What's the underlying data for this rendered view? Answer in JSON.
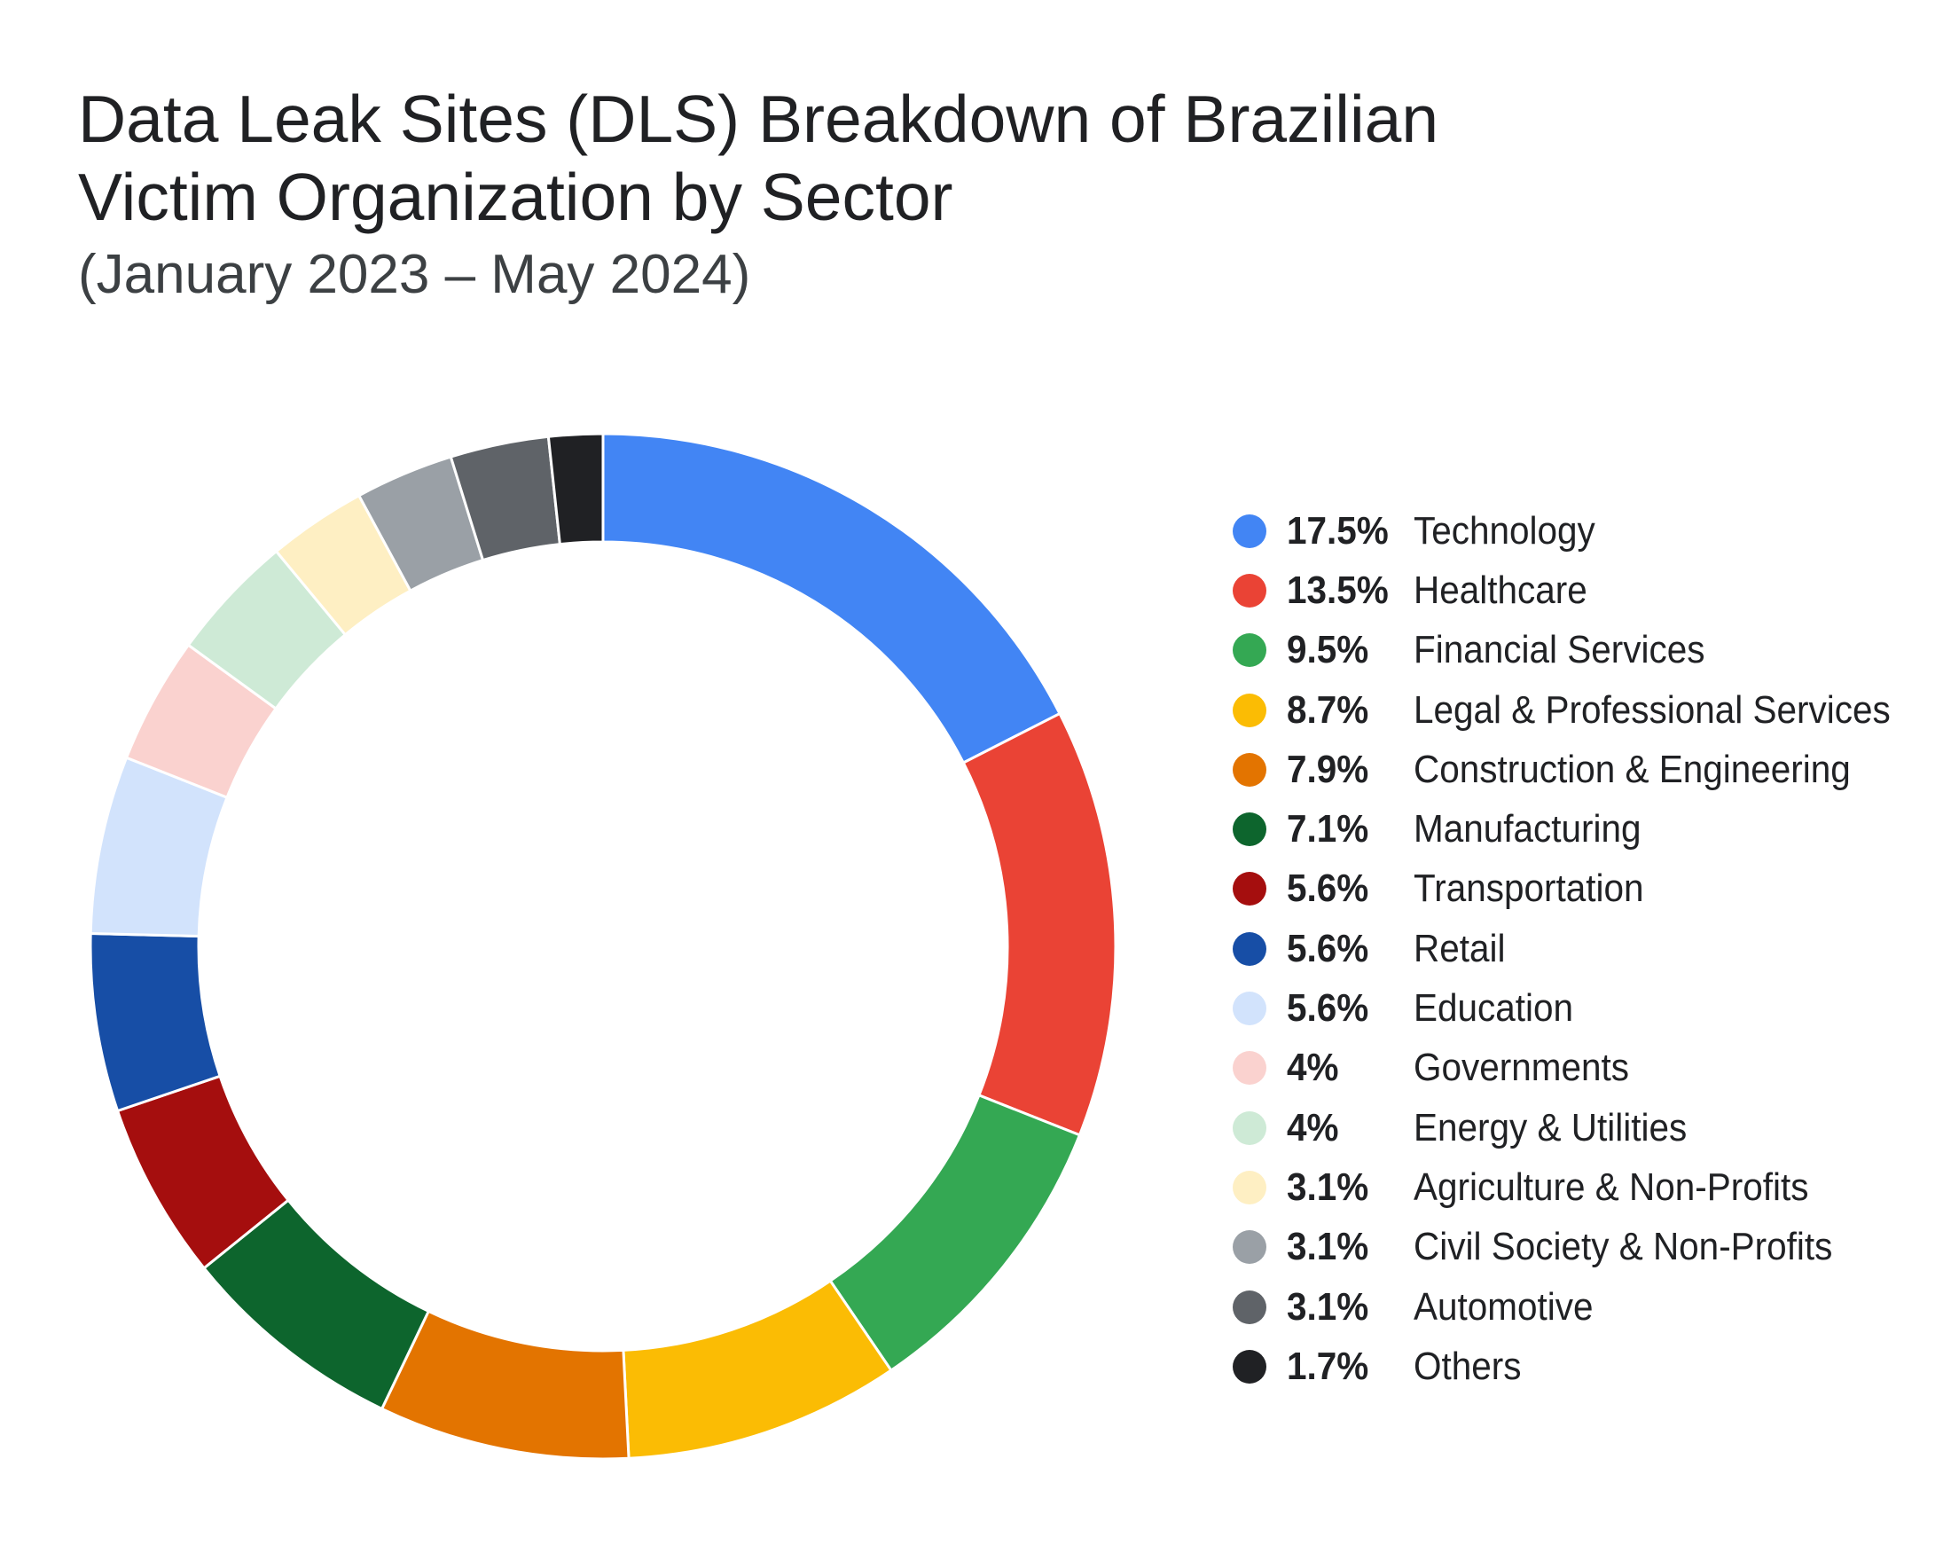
{
  "chart_data": {
    "type": "pie",
    "title": "Data Leak Sites (DLS) Breakdown of Brazilian Victim Organization by Sector",
    "subtitle": "(January 2023 – May 2024)",
    "legend_position": "right",
    "donut": true,
    "slices": [
      {
        "label": "Technology",
        "value": 17.5,
        "display": "17.5%",
        "color": "#4285F4"
      },
      {
        "label": "Healthcare",
        "value": 13.5,
        "display": "13.5%",
        "color": "#EA4335"
      },
      {
        "label": "Financial Services",
        "value": 9.5,
        "display": "9.5%",
        "color": "#34A853"
      },
      {
        "label": "Legal & Professional Services",
        "value": 8.7,
        "display": "8.7%",
        "color": "#FBBC04"
      },
      {
        "label": "Construction & Engineering",
        "value": 7.9,
        "display": "7.9%",
        "color": "#E37400"
      },
      {
        "label": "Manufacturing",
        "value": 7.1,
        "display": "7.1%",
        "color": "#0D652D"
      },
      {
        "label": "Transportation",
        "value": 5.6,
        "display": "5.6%",
        "color": "#A50E0E"
      },
      {
        "label": "Retail",
        "value": 5.6,
        "display": "5.6%",
        "color": "#174EA6"
      },
      {
        "label": "Education",
        "value": 5.6,
        "display": "5.6%",
        "color": "#D2E3FC"
      },
      {
        "label": "Governments",
        "value": 4,
        "display": "4%",
        "color": "#FAD2CF"
      },
      {
        "label": "Energy & Utilities",
        "value": 4,
        "display": "4%",
        "color": "#CEEAD6"
      },
      {
        "label": "Agriculture & Non-Profits",
        "value": 3.1,
        "display": "3.1%",
        "color": "#FEEFC3"
      },
      {
        "label": "Civil Society & Non-Profits",
        "value": 3.1,
        "display": "3.1%",
        "color": "#9AA0A6"
      },
      {
        "label": "Automotive",
        "value": 3.1,
        "display": "3.1%",
        "color": "#5F6368"
      },
      {
        "label": "Others",
        "value": 1.7,
        "display": "1.7%",
        "color": "#202124"
      }
    ]
  }
}
